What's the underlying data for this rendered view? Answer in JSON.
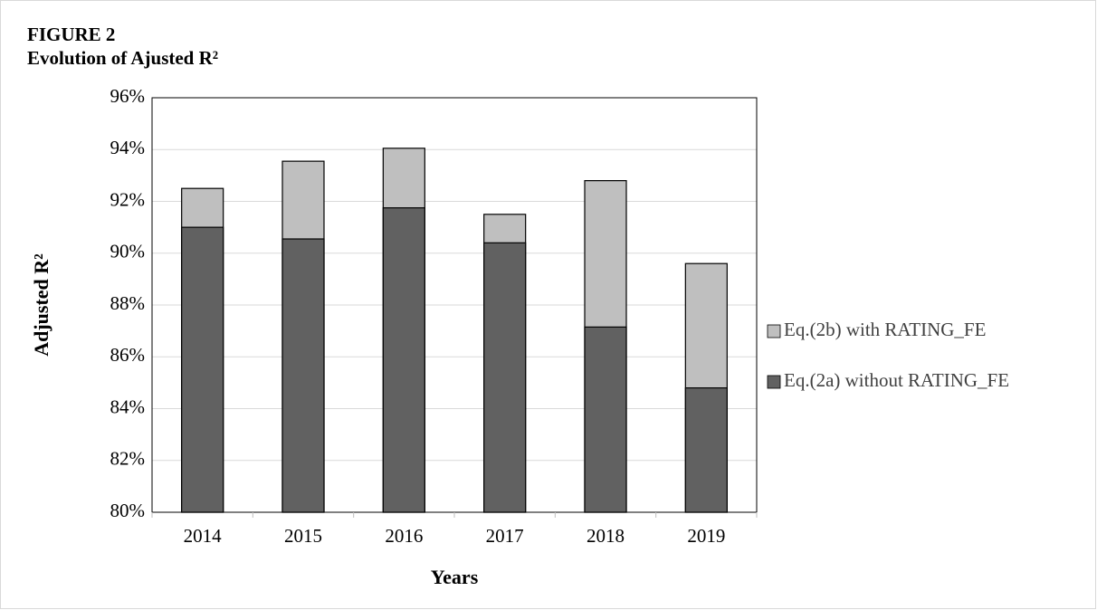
{
  "chart_data": {
    "type": "bar",
    "bar_mode": "overlay",
    "title": "FIGURE 2",
    "subtitle": "Evolution of Ajusted R²",
    "x_label": "Years",
    "y_label": "Adjusted R²",
    "categories": [
      "2014",
      "2015",
      "2016",
      "2017",
      "2018",
      "2019"
    ],
    "series": [
      {
        "name": "Eq.(2b) with RATING_FE",
        "color": "#bfbfbf",
        "values": [
          92.5,
          93.55,
          94.05,
          91.5,
          92.8,
          89.6
        ]
      },
      {
        "name": "Eq.(2a) without RATING_FE",
        "color": "#616161",
        "values": [
          91.0,
          90.55,
          91.75,
          90.4,
          87.15,
          84.8
        ]
      }
    ],
    "ylim": [
      80,
      96
    ],
    "yticks": [
      {
        "value": 80,
        "label": "80%"
      },
      {
        "value": 82,
        "label": "82%"
      },
      {
        "value": 84,
        "label": "84%"
      },
      {
        "value": 86,
        "label": "86%"
      },
      {
        "value": 88,
        "label": "88%"
      },
      {
        "value": 90,
        "label": "90%"
      },
      {
        "value": 92,
        "label": "92%"
      },
      {
        "value": 94,
        "label": "94%"
      },
      {
        "value": 96,
        "label": "96%"
      }
    ],
    "grid": true,
    "legend": "right"
  }
}
